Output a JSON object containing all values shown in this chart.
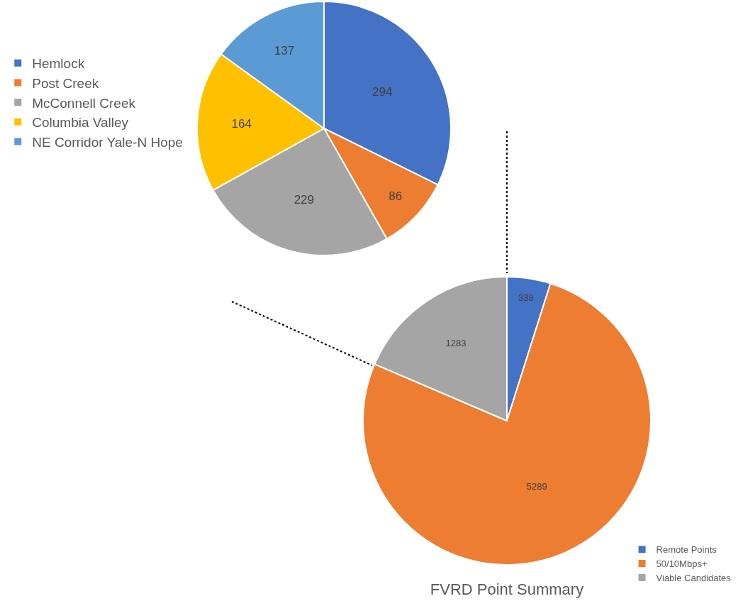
{
  "chart_data": [
    {
      "type": "pie",
      "categories": [
        "Hemlock",
        "Post Creek",
        "McConnell Creek",
        "Columbia Valley",
        "NE Corridor Yale-N Hope"
      ],
      "values": [
        294,
        86,
        229,
        164,
        137
      ],
      "colors": [
        "#4472c4",
        "#ed7d31",
        "#a5a5a5",
        "#ffc000",
        "#5b9bd5"
      ],
      "data_labels": true,
      "legend": "left"
    },
    {
      "type": "pie",
      "title": "FVRD Point Summary",
      "categories": [
        "Remote Points",
        "50/10Mbps+",
        "Viable Candidates"
      ],
      "values": [
        338,
        5289,
        1283
      ],
      "colors": [
        "#4472c4",
        "#ed7d31",
        "#a5a5a5"
      ],
      "data_labels": true,
      "legend": "bottom right"
    }
  ]
}
